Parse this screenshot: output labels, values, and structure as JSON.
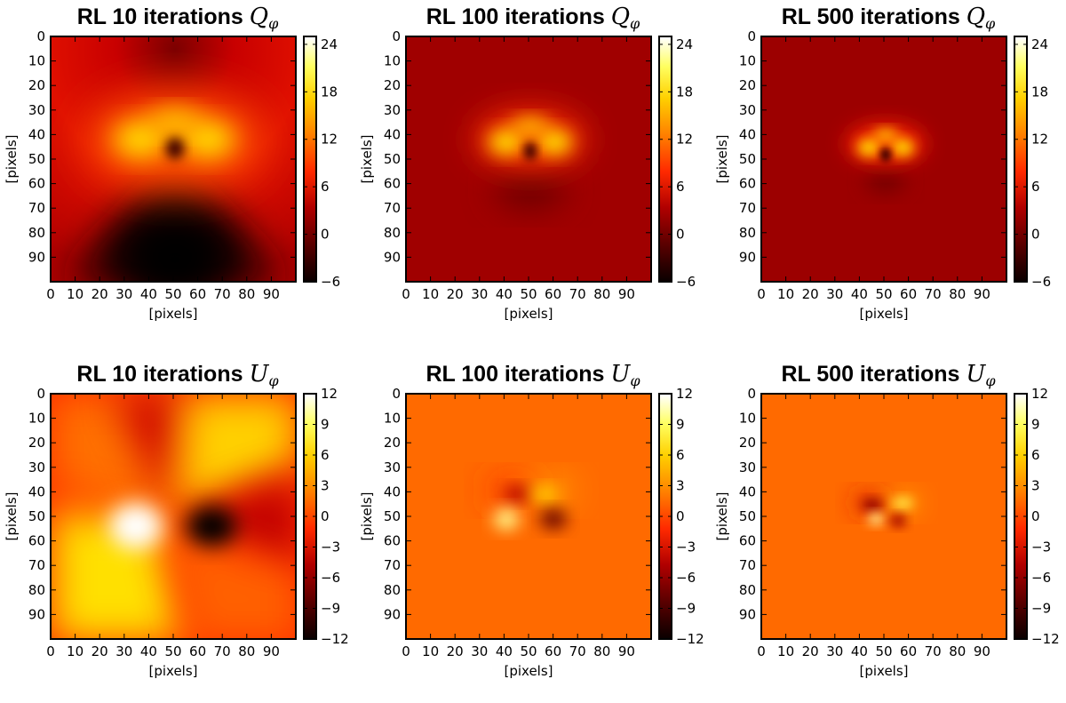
{
  "chart_data": [
    {
      "type": "heatmap",
      "title": "RL 10 iterations",
      "symbol": "Q",
      "symbol_sub": "φ",
      "xlabel": "[pixels]",
      "ylabel": "[pixels]",
      "xlim": [
        0,
        99
      ],
      "ylim": [
        99,
        0
      ],
      "x_ticks": [
        "0",
        "10",
        "20",
        "30",
        "40",
        "50",
        "60",
        "70",
        "80",
        "90"
      ],
      "y_ticks": [
        "0",
        "10",
        "20",
        "30",
        "40",
        "50",
        "60",
        "70",
        "80",
        "90"
      ],
      "colorbar_range": [
        -6,
        25
      ],
      "colorbar_ticks": [
        "24",
        "18",
        "12",
        "6",
        "0",
        "−6"
      ],
      "colorbar_tick_values": [
        24,
        18,
        12,
        6,
        0,
        -6
      ],
      "colormap": "hot"
    },
    {
      "type": "heatmap",
      "title": "RL 100 iterations",
      "symbol": "Q",
      "symbol_sub": "φ",
      "xlabel": "[pixels]",
      "ylabel": "[pixels]",
      "xlim": [
        0,
        99
      ],
      "ylim": [
        99,
        0
      ],
      "x_ticks": [
        "0",
        "10",
        "20",
        "30",
        "40",
        "50",
        "60",
        "70",
        "80",
        "90"
      ],
      "y_ticks": [
        "0",
        "10",
        "20",
        "30",
        "40",
        "50",
        "60",
        "70",
        "80",
        "90"
      ],
      "colorbar_range": [
        -6,
        25
      ],
      "colorbar_ticks": [
        "24",
        "18",
        "12",
        "6",
        "0",
        "−6"
      ],
      "colorbar_tick_values": [
        24,
        18,
        12,
        6,
        0,
        -6
      ],
      "colormap": "hot"
    },
    {
      "type": "heatmap",
      "title": "RL 500 iterations",
      "symbol": "Q",
      "symbol_sub": "φ",
      "xlabel": "[pixels]",
      "ylabel": "[pixels]",
      "xlim": [
        0,
        99
      ],
      "ylim": [
        99,
        0
      ],
      "x_ticks": [
        "0",
        "10",
        "20",
        "30",
        "40",
        "50",
        "60",
        "70",
        "80",
        "90"
      ],
      "y_ticks": [
        "0",
        "10",
        "20",
        "30",
        "40",
        "50",
        "60",
        "70",
        "80",
        "90"
      ],
      "colorbar_range": [
        -6,
        25
      ],
      "colorbar_ticks": [
        "24",
        "18",
        "12",
        "6",
        "0",
        "−6"
      ],
      "colorbar_tick_values": [
        24,
        18,
        12,
        6,
        0,
        -6
      ],
      "colormap": "hot"
    },
    {
      "type": "heatmap",
      "title": "RL 10 iterations",
      "symbol": "U",
      "symbol_sub": "φ",
      "xlabel": "[pixels]",
      "ylabel": "[pixels]",
      "xlim": [
        0,
        99
      ],
      "ylim": [
        99,
        0
      ],
      "x_ticks": [
        "0",
        "10",
        "20",
        "30",
        "40",
        "50",
        "60",
        "70",
        "80",
        "90"
      ],
      "y_ticks": [
        "0",
        "10",
        "20",
        "30",
        "40",
        "50",
        "60",
        "70",
        "80",
        "90"
      ],
      "colorbar_range": [
        -12,
        12
      ],
      "colorbar_ticks": [
        "12",
        "9",
        "6",
        "3",
        "0",
        "−3",
        "−6",
        "−9",
        "−12"
      ],
      "colorbar_tick_values": [
        12,
        9,
        6,
        3,
        0,
        -3,
        -6,
        -9,
        -12
      ],
      "colormap": "hot"
    },
    {
      "type": "heatmap",
      "title": "RL 100 iterations",
      "symbol": "U",
      "symbol_sub": "φ",
      "xlabel": "[pixels]",
      "ylabel": "[pixels]",
      "xlim": [
        0,
        99
      ],
      "ylim": [
        99,
        0
      ],
      "x_ticks": [
        "0",
        "10",
        "20",
        "30",
        "40",
        "50",
        "60",
        "70",
        "80",
        "90"
      ],
      "y_ticks": [
        "0",
        "10",
        "20",
        "30",
        "40",
        "50",
        "60",
        "70",
        "80",
        "90"
      ],
      "colorbar_range": [
        -12,
        12
      ],
      "colorbar_ticks": [
        "12",
        "9",
        "6",
        "3",
        "0",
        "−3",
        "−6",
        "−9",
        "−12"
      ],
      "colorbar_tick_values": [
        12,
        9,
        6,
        3,
        0,
        -3,
        -6,
        -9,
        -12
      ],
      "colormap": "hot"
    },
    {
      "type": "heatmap",
      "title": "RL 500 iterations",
      "symbol": "U",
      "symbol_sub": "φ",
      "xlabel": "[pixels]",
      "ylabel": "[pixels]",
      "xlim": [
        0,
        99
      ],
      "ylim": [
        99,
        0
      ],
      "x_ticks": [
        "0",
        "10",
        "20",
        "30",
        "40",
        "50",
        "60",
        "70",
        "80",
        "90"
      ],
      "y_ticks": [
        "0",
        "10",
        "20",
        "30",
        "40",
        "50",
        "60",
        "70",
        "80",
        "90"
      ],
      "colorbar_range": [
        -12,
        12
      ],
      "colorbar_ticks": [
        "12",
        "9",
        "6",
        "3",
        "0",
        "−3",
        "−6",
        "−9",
        "−12"
      ],
      "colorbar_tick_values": [
        12,
        9,
        6,
        3,
        0,
        -3,
        -6,
        -9,
        -12
      ],
      "colormap": "hot"
    }
  ]
}
